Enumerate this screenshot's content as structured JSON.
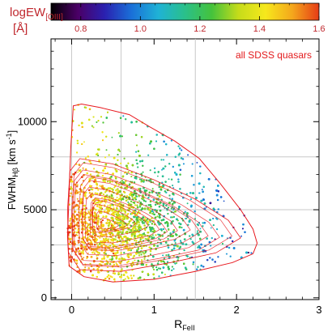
{
  "chart_data": {
    "type": "scatter",
    "annotation": "all SDSS quasars",
    "xlabel_main": "R",
    "xlabel_sub": "FeII",
    "ylabel_main": "FWHM",
    "ylabel_sub": "Hβ",
    "ylabel_unit_pre": " [km s",
    "ylabel_unit_sup": "-1",
    "ylabel_unit_post": "]",
    "xlim": [
      -0.25,
      3.0
    ],
    "ylim": [
      -100,
      14700
    ],
    "xticks": [
      0,
      1,
      2,
      3
    ],
    "xtick_labels": [
      "0",
      "1",
      "2",
      "3"
    ],
    "yticks": [
      0,
      5000,
      10000
    ],
    "ytick_labels": [
      "0",
      "5000",
      "10000"
    ],
    "grid_x": [
      0,
      0.6,
      1.5
    ],
    "grid_y": [
      3000,
      5000,
      8000
    ],
    "colorbar": {
      "label_main": "logEW",
      "label_sub": "[OIII]",
      "label_unit": "[Å]",
      "range": [
        0.7,
        1.6
      ],
      "ticks": [
        0.8,
        1.0,
        1.2,
        1.4,
        1.6
      ],
      "tick_labels": [
        "0.8",
        "1.0",
        "1.2",
        "1.4",
        "1.6"
      ],
      "stops": [
        "#000000",
        "#4b0066",
        "#2a20b0",
        "#1a70d8",
        "#1fb2d6",
        "#2ac08a",
        "#45c23c",
        "#c6dc1a",
        "#f6e81c",
        "#f4a71c",
        "#e63c16"
      ]
    },
    "colors": {
      "contour": "#e8181e",
      "annotation": "#e31a1c",
      "label": "#c0282e",
      "grid": "#c8c8c8"
    },
    "outer_contour": [
      [
        0.02,
        10900
      ],
      [
        0.12,
        11000
      ],
      [
        0.35,
        10800
      ],
      [
        0.7,
        10400
      ],
      [
        0.95,
        9700
      ],
      [
        1.25,
        8900
      ],
      [
        1.55,
        7900
      ],
      [
        1.8,
        6500
      ],
      [
        2.05,
        5000
      ],
      [
        2.2,
        3900
      ],
      [
        2.25,
        3100
      ],
      [
        2.2,
        2500
      ],
      [
        1.95,
        2000
      ],
      [
        1.5,
        1500
      ],
      [
        1.0,
        1050
      ],
      [
        0.5,
        900
      ],
      [
        0.15,
        1200
      ],
      [
        -0.03,
        1800
      ],
      [
        -0.05,
        3500
      ],
      [
        -0.03,
        6000
      ],
      [
        -0.01,
        8500
      ],
      [
        0.02,
        10900
      ]
    ],
    "inner_contour": [
      [
        -0.02,
        7200
      ],
      [
        0.1,
        7900
      ],
      [
        0.5,
        7600
      ],
      [
        1.0,
        6700
      ],
      [
        1.5,
        5600
      ],
      [
        1.9,
        4400
      ],
      [
        2.05,
        3400
      ],
      [
        1.75,
        2550
      ],
      [
        1.2,
        2000
      ],
      [
        0.6,
        1500
      ],
      [
        0.1,
        1600
      ],
      [
        -0.04,
        2600
      ],
      [
        -0.05,
        5000
      ],
      [
        -0.02,
        7200
      ]
    ],
    "contour_centers": [
      [
        0.38,
        4300
      ],
      [
        0.55,
        4700
      ]
    ]
  }
}
